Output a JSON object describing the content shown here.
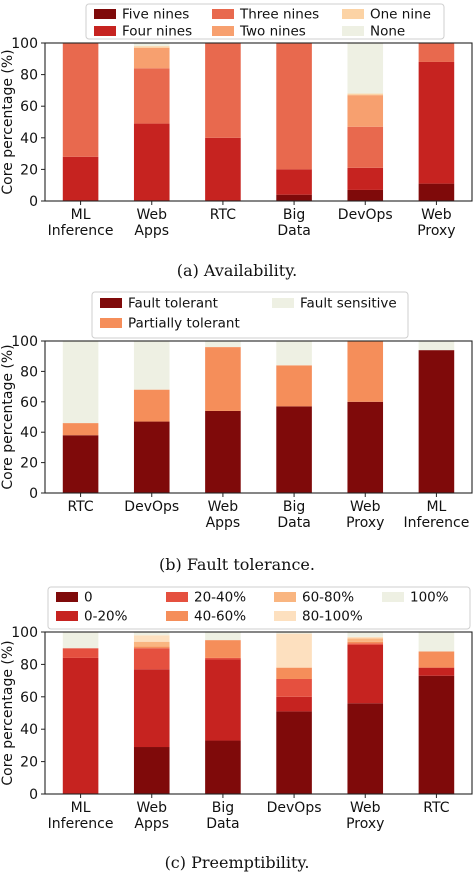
{
  "chart_data": [
    {
      "type": "bar",
      "stacked": true,
      "caption": "(a) Availability.",
      "ylabel": "Core percentage (%)",
      "ylim": [
        0,
        100
      ],
      "yticks": [
        "0",
        "20",
        "40",
        "60",
        "80",
        "100"
      ],
      "categories": [
        [
          "ML",
          "Inference"
        ],
        [
          "Web",
          "Apps"
        ],
        [
          "RTC"
        ],
        [
          "Big",
          "Data"
        ],
        [
          "DevOps"
        ],
        [
          "Web",
          "Proxy"
        ]
      ],
      "legend_columns": 3,
      "series": [
        {
          "name": "Five nines",
          "color": "#7f0a0a",
          "values": [
            0,
            0,
            0,
            4,
            7,
            11
          ]
        },
        {
          "name": "Four nines",
          "color": "#c62320",
          "values": [
            28,
            49,
            40,
            16,
            14,
            77
          ]
        },
        {
          "name": "Three nines",
          "color": "#e8694e",
          "values": [
            72,
            35,
            60,
            80,
            26,
            12
          ]
        },
        {
          "name": "Two nines",
          "color": "#f7a06f",
          "values": [
            0,
            13,
            0,
            0,
            20,
            0
          ]
        },
        {
          "name": "One nine",
          "color": "#fcd3a5",
          "values": [
            0,
            1,
            0,
            0,
            1,
            0
          ]
        },
        {
          "name": "None",
          "color": "#eef0e3",
          "values": [
            0,
            2,
            0,
            0,
            32,
            0
          ]
        }
      ]
    },
    {
      "type": "bar",
      "stacked": true,
      "caption": "(b) Fault tolerance.",
      "ylabel": "Core percentage (%)",
      "ylim": [
        0,
        100
      ],
      "yticks": [
        "0",
        "20",
        "40",
        "60",
        "80",
        "100"
      ],
      "categories": [
        [
          "RTC"
        ],
        [
          "DevOps"
        ],
        [
          "Web",
          "Apps"
        ],
        [
          "Big",
          "Data"
        ],
        [
          "Web",
          "Proxy"
        ],
        [
          "ML",
          "Inference"
        ]
      ],
      "legend_columns": 2,
      "series": [
        {
          "name": "Fault tolerant",
          "color": "#7f0a0a",
          "values": [
            38,
            47,
            54,
            57,
            60,
            94
          ]
        },
        {
          "name": "Partially tolerant",
          "color": "#f58e5a",
          "values": [
            8,
            21,
            42,
            27,
            40,
            0
          ]
        },
        {
          "name": "Fault sensitive",
          "color": "#eef0e3",
          "values": [
            54,
            32,
            4,
            16,
            0,
            6
          ]
        }
      ]
    },
    {
      "type": "bar",
      "stacked": true,
      "caption": "(c) Preemptibility.",
      "ylabel": "Core percentage (%)",
      "ylim": [
        0,
        100
      ],
      "yticks": [
        "0",
        "20",
        "40",
        "60",
        "80",
        "100"
      ],
      "categories": [
        [
          "ML",
          "Inference"
        ],
        [
          "Web",
          "Apps"
        ],
        [
          "Big",
          "Data"
        ],
        [
          "DevOps"
        ],
        [
          "Web",
          "Proxy"
        ],
        [
          "RTC"
        ]
      ],
      "legend_columns": 4,
      "series": [
        {
          "name": "0",
          "color": "#7f0a0a",
          "values": [
            0,
            29,
            33,
            51,
            56,
            73
          ]
        },
        {
          "name": "0-20%",
          "color": "#c62320",
          "values": [
            84,
            48,
            50,
            9,
            36,
            5
          ]
        },
        {
          "name": "20-40%",
          "color": "#e5503f",
          "values": [
            6,
            13,
            1,
            11,
            1,
            0
          ]
        },
        {
          "name": "40-60%",
          "color": "#f58e5a",
          "values": [
            0,
            1,
            11,
            7,
            1,
            10
          ]
        },
        {
          "name": "60-80%",
          "color": "#f9b580",
          "values": [
            0,
            3,
            0,
            0,
            2,
            0
          ]
        },
        {
          "name": "80-100%",
          "color": "#fde0bf",
          "values": [
            0,
            4,
            0,
            21,
            1,
            0
          ]
        },
        {
          "name": "100%",
          "color": "#eef0e3",
          "values": [
            10,
            2,
            5,
            1,
            3,
            12
          ]
        }
      ]
    }
  ]
}
